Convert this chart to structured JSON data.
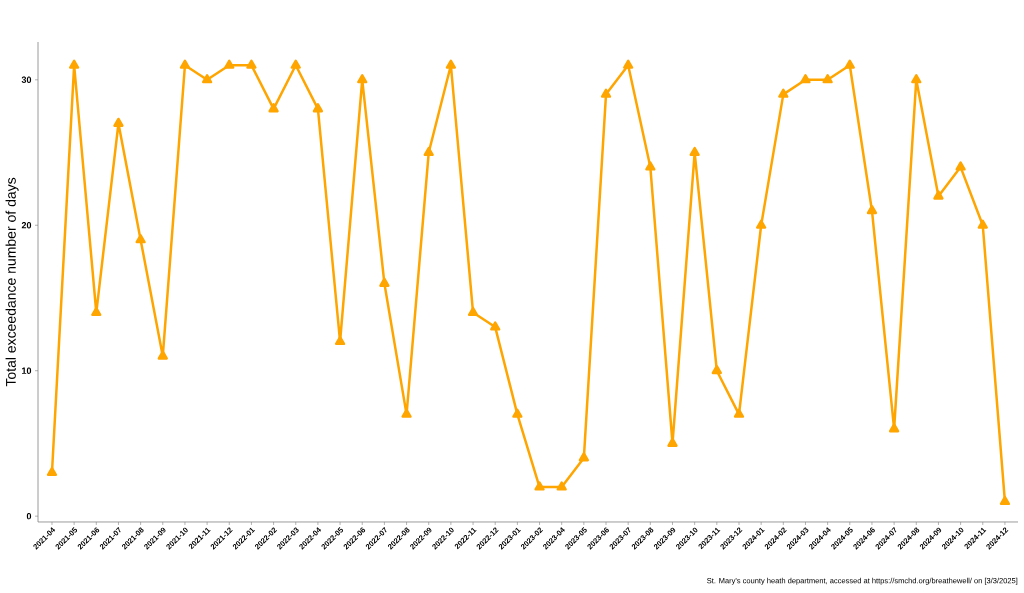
{
  "chart_data": {
    "type": "line",
    "ylabel": "Total exceedance number of days",
    "categories": [
      "2021-04",
      "2021-05",
      "2021-06",
      "2021-07",
      "2021-08",
      "2021-09",
      "2021-10",
      "2021-11",
      "2021-12",
      "2022-01",
      "2022-02",
      "2022-03",
      "2022-04",
      "2022-05",
      "2022-06",
      "2022-07",
      "2022-08",
      "2022-09",
      "2022-10",
      "2022-11",
      "2022-12",
      "2023-01",
      "2023-02",
      "2023-04",
      "2023-05",
      "2023-06",
      "2023-07",
      "2023-08",
      "2023-09",
      "2023-10",
      "2023-11",
      "2023-12",
      "2024-01",
      "2024-02",
      "2024-03",
      "2024-04",
      "2024-05",
      "2024-06",
      "2024-07",
      "2024-08",
      "2024-09",
      "2024-10",
      "2024-11",
      "2024-12"
    ],
    "values": [
      3,
      31,
      14,
      27,
      19,
      11,
      31,
      30,
      31,
      31,
      28,
      31,
      28,
      12,
      30,
      16,
      7,
      25,
      31,
      14,
      13,
      7,
      2,
      2,
      4,
      29,
      31,
      24,
      5,
      25,
      10,
      7,
      20,
      29,
      30,
      30,
      31,
      21,
      6,
      30,
      22,
      24,
      20,
      1
    ],
    "color": "#ffa500",
    "marker": "triangle",
    "line_style": "solid",
    "grid": false,
    "ylim": [
      -0.4,
      32.6
    ],
    "yticks": [
      0,
      10,
      20,
      30
    ],
    "annotations": [
      "St. Mary's county heath department, accessed at https://smchd.org/breathewell/ on [3/3/2025]"
    ]
  }
}
